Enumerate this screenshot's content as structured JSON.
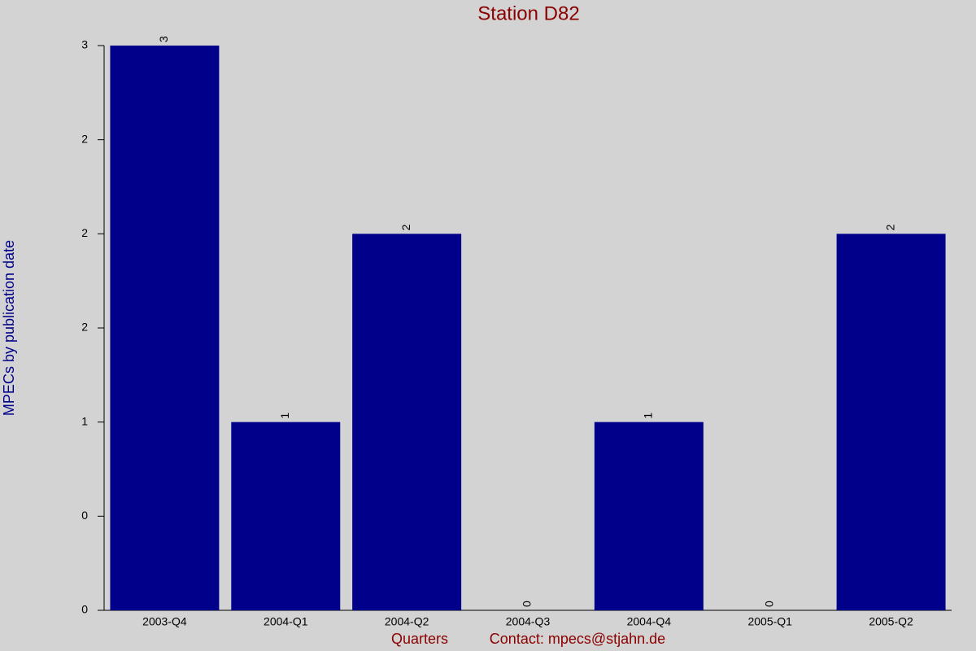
{
  "chart_data": {
    "type": "bar",
    "title": "Station D82",
    "x_label": "Quarters",
    "contact": "Contact: mpecs@stjahn.de",
    "y_label": "MPECs by publication date",
    "categories": [
      "2003-Q4",
      "2004-Q1",
      "2004-Q2",
      "2004-Q3",
      "2004-Q4",
      "2005-Q1",
      "2005-Q2"
    ],
    "values": [
      3,
      1,
      2,
      0,
      1,
      0,
      2
    ],
    "color": "#00008b",
    "ylim": [
      0,
      3
    ],
    "yticks": [
      0,
      {
        "value": 0.5,
        "label": "0"
      },
      1,
      {
        "value": 1.5,
        "label": "2"
      },
      2,
      {
        "value": 2.5,
        "label": "2"
      },
      3
    ],
    "grid": false
  }
}
